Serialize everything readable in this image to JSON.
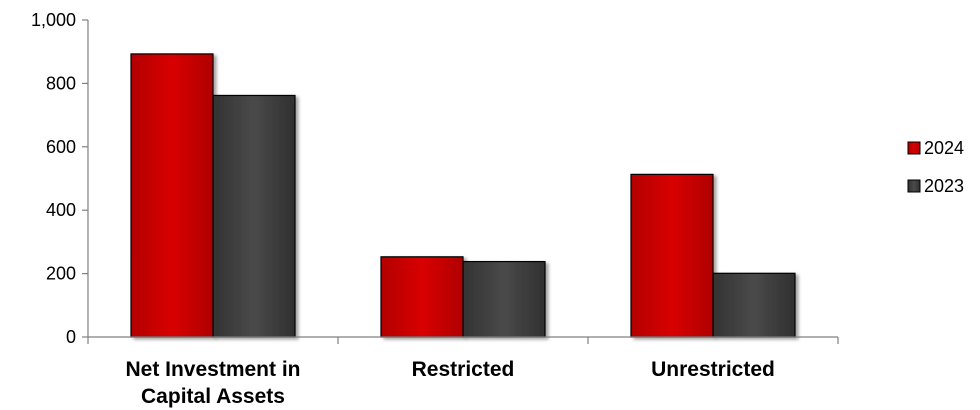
{
  "chart_data": {
    "type": "bar",
    "categories": [
      [
        "Net Investment in",
        "Capital Assets"
      ],
      [
        "Restricted"
      ],
      [
        "Unrestricted"
      ]
    ],
    "series": [
      {
        "name": "2024",
        "values": [
          893,
          253,
          513
        ],
        "color": "#cc0000"
      },
      {
        "name": "2023",
        "values": [
          762,
          238,
          201
        ],
        "color": "#404040"
      }
    ],
    "yticks": [
      "0",
      "200",
      "400",
      "600",
      "800",
      "1,000"
    ],
    "ylim": [
      0,
      1000
    ],
    "grid": false,
    "legend": "right"
  }
}
